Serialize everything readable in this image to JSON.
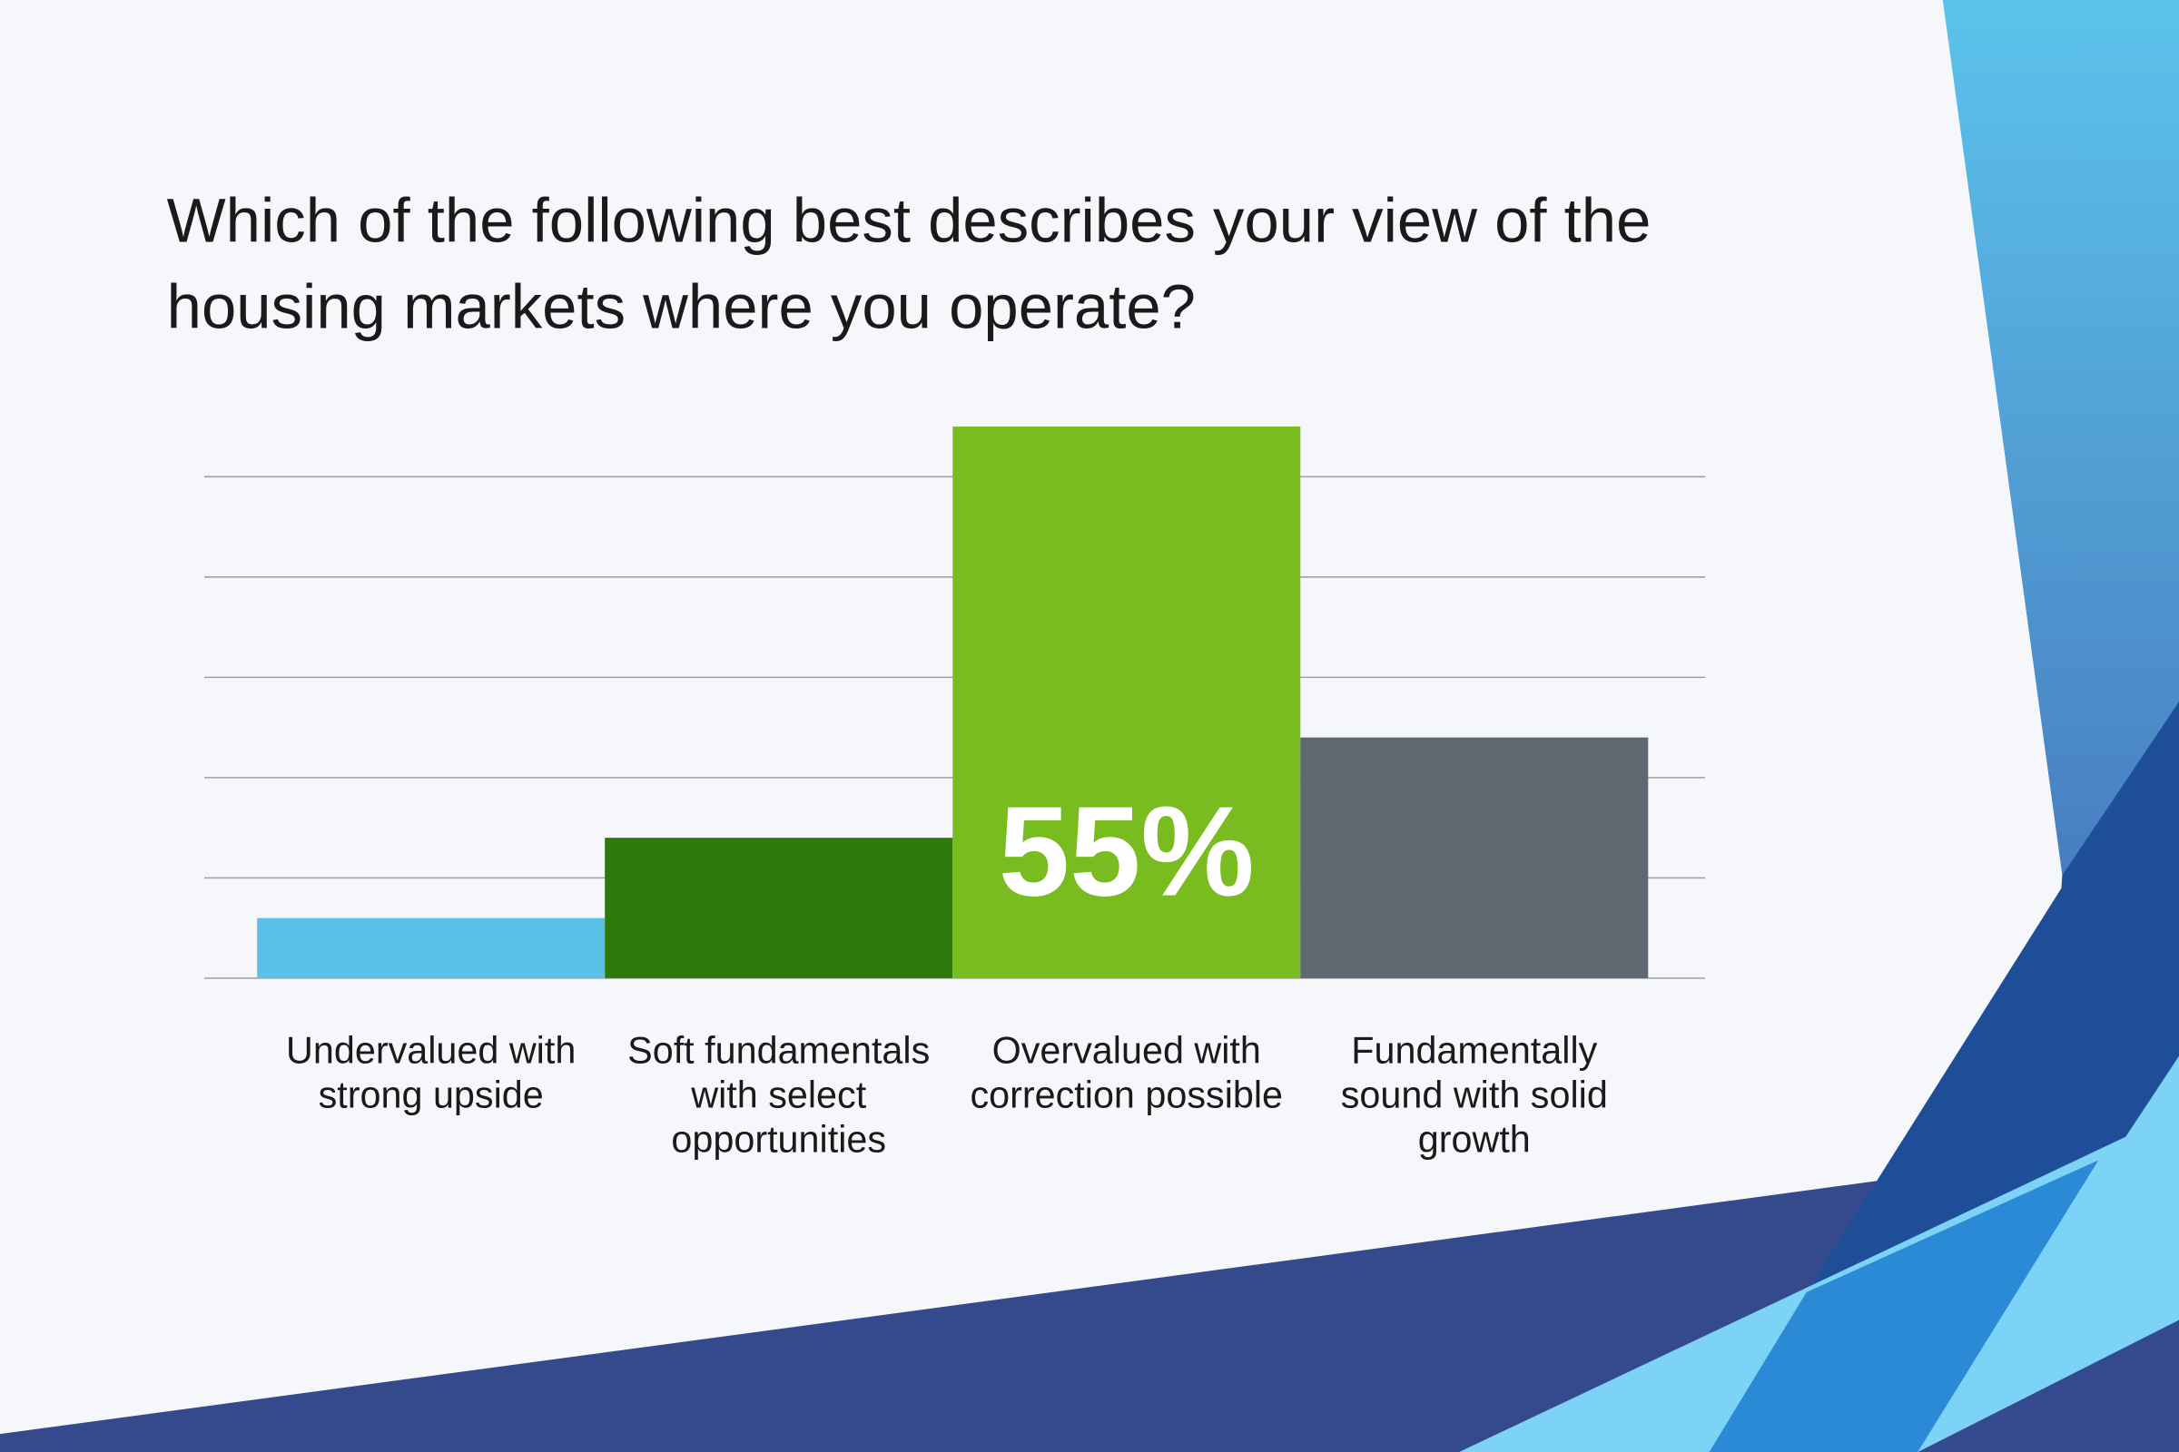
{
  "chart_data": {
    "type": "bar",
    "title": "Which of the following best describes your view of the housing markets where you operate?",
    "categories": [
      "Undervalued with strong upside",
      "Soft fundamentals with select opportunities",
      "Overvalued with correction possible",
      "Fundamentally sound with solid growth"
    ],
    "values": [
      6,
      14,
      55,
      24
    ],
    "value_labels": [
      null,
      null,
      "55%",
      null
    ],
    "colors": [
      "#5bc0e8",
      "#2b7a0b",
      "#78bc20",
      "#5d6870"
    ],
    "ylim": [
      0,
      55
    ],
    "yticks": [
      0,
      10,
      20,
      30,
      40,
      50
    ],
    "grid": true
  }
}
